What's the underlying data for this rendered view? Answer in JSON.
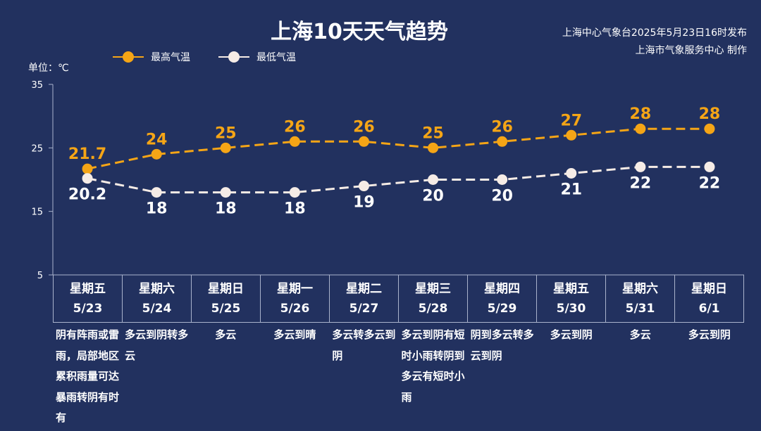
{
  "header": {
    "title": "上海10天天气趋势",
    "source_line1": "上海中心气象台2025年5月23日16时发布",
    "source_line2": "上海市气象服务中心 制作"
  },
  "legend": {
    "high_label": "最高气温",
    "low_label": "最低气温"
  },
  "unit_label": "单位：℃",
  "colors": {
    "background": "#22315f",
    "high": "#f5a516",
    "low": "#f6ece6",
    "axis": "#aab3cc"
  },
  "days": [
    {
      "weekday": "星期五",
      "date": "5/23",
      "desc": "阴有阵雨或雷雨，局部地区累积雨量可达暴雨转阴有时有"
    },
    {
      "weekday": "星期六",
      "date": "5/24",
      "desc": "多云到阴转多云"
    },
    {
      "weekday": "星期日",
      "date": "5/25",
      "desc": "多云"
    },
    {
      "weekday": "星期一",
      "date": "5/26",
      "desc": "多云到晴"
    },
    {
      "weekday": "星期二",
      "date": "5/27",
      "desc": "多云转多云到阴"
    },
    {
      "weekday": "星期三",
      "date": "5/28",
      "desc": "多云到阴有短时小雨转阴到多云有短时小雨"
    },
    {
      "weekday": "星期四",
      "date": "5/29",
      "desc": "阴到多云转多云到阴"
    },
    {
      "weekday": "星期五",
      "date": "5/30",
      "desc": "多云到阴"
    },
    {
      "weekday": "星期六",
      "date": "5/31",
      "desc": "多云"
    },
    {
      "weekday": "星期日",
      "date": "6/1",
      "desc": "多云到阴"
    }
  ],
  "chart_data": {
    "type": "line",
    "title": "上海10天天气趋势",
    "ylabel": "单位：℃",
    "ylim": [
      5,
      35
    ],
    "yticks": [
      5,
      15,
      25,
      35
    ],
    "categories": [
      "5/23",
      "5/24",
      "5/25",
      "5/26",
      "5/27",
      "5/28",
      "5/29",
      "5/30",
      "5/31",
      "6/1"
    ],
    "series": [
      {
        "name": "最高气温",
        "values": [
          21.7,
          24,
          25,
          26,
          26,
          25,
          26,
          27,
          28,
          28
        ],
        "labels": [
          "21.7",
          "24",
          "25",
          "26",
          "26",
          "25",
          "26",
          "27",
          "28",
          "28"
        ],
        "color": "#f5a516"
      },
      {
        "name": "最低气温",
        "values": [
          20.2,
          18,
          18,
          18,
          19,
          20,
          20,
          21,
          22,
          22
        ],
        "labels": [
          "20.2",
          "18",
          "18",
          "18",
          "19",
          "20",
          "20",
          "21",
          "22",
          "22"
        ],
        "color": "#f6ece6"
      }
    ],
    "legend": "top-left",
    "grid": false
  }
}
